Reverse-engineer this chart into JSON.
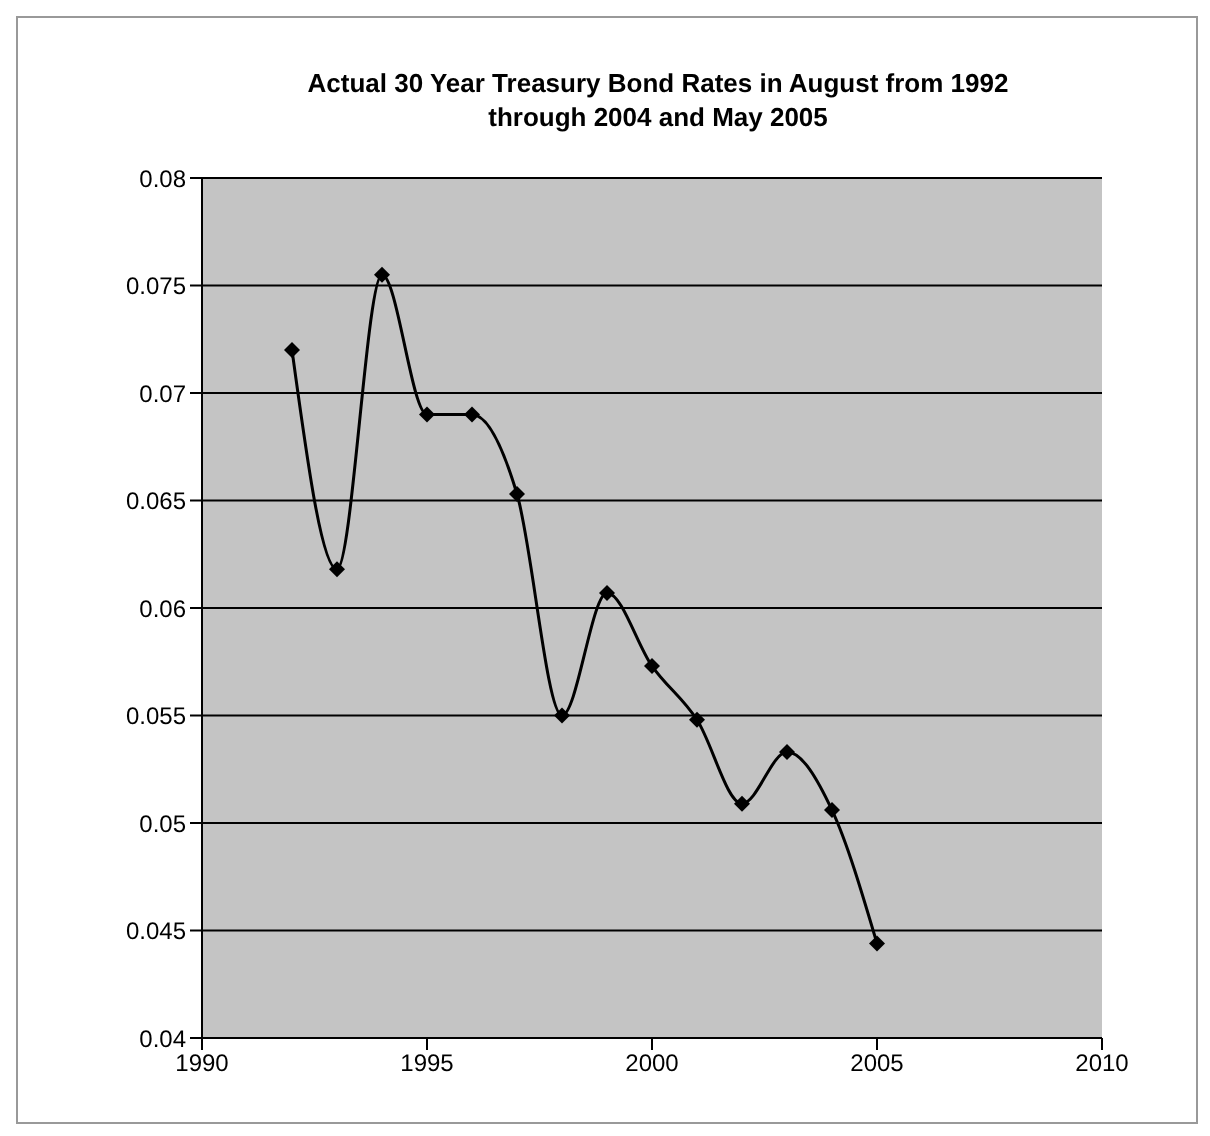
{
  "chart_data": {
    "type": "line",
    "title": "Actual 30 Year Treasury Bond Rates in August from 1992 through 2004 and May 2005",
    "x": [
      1992,
      1993,
      1994,
      1995,
      1996,
      1997,
      1998,
      1999,
      2000,
      2001,
      2002,
      2003,
      2004,
      2005
    ],
    "series": [
      {
        "color": "#000000",
        "values": [
          0.072,
          0.0618,
          0.0755,
          0.069,
          0.069,
          0.0653,
          0.055,
          0.0607,
          0.0573,
          0.0548,
          0.0509,
          0.0533,
          0.0506,
          0.0444
        ]
      }
    ],
    "xlim": [
      1990,
      2010
    ],
    "xticks": [
      1990,
      1995,
      2000,
      2005,
      2010
    ],
    "ylim": [
      0.04,
      0.08
    ],
    "yticks": [
      0.04,
      0.045,
      0.05,
      0.055,
      0.06,
      0.065,
      0.07,
      0.075,
      0.08
    ],
    "grid": "y",
    "legend": false,
    "marker": "diamond",
    "line_style": "solid"
  }
}
